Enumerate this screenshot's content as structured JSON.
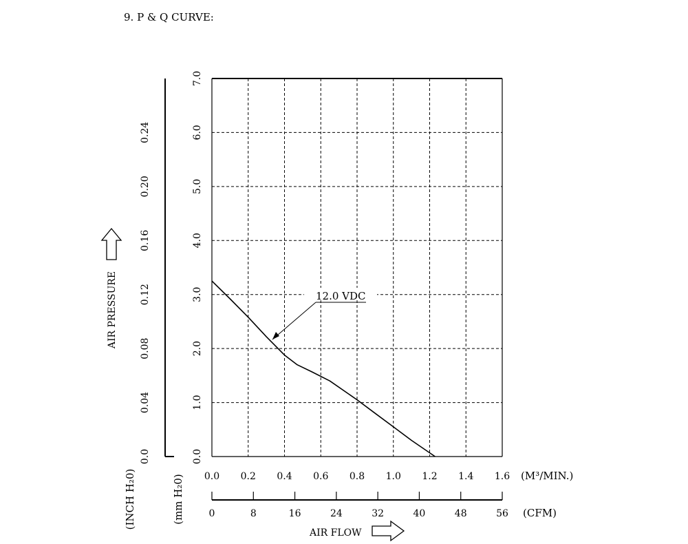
{
  "page": {
    "section_title": "9. P & Q CURVE:"
  },
  "chart_data": {
    "type": "line",
    "title": "",
    "xlabel": "AIR FLOW",
    "ylabel": "AIR PRESSURE",
    "x_axis_primary": {
      "unit": "(M³/MIN.)",
      "range": [
        0.0,
        1.6
      ],
      "ticks": [
        0.0,
        0.2,
        0.4,
        0.6,
        0.8,
        1.0,
        1.2,
        1.4,
        1.6
      ],
      "tick_labels": [
        "0.0",
        "0.2",
        "0.4",
        "0.6",
        "0.8",
        "1.0",
        "1.2",
        "1.4",
        "1.6"
      ]
    },
    "x_axis_secondary": {
      "unit": "(CFM)",
      "range": [
        0,
        56
      ],
      "ticks": [
        0,
        8,
        16,
        24,
        32,
        40,
        48,
        56
      ],
      "tick_labels": [
        "0",
        "8",
        "16",
        "24",
        "32",
        "40",
        "48",
        "56"
      ]
    },
    "y_axis_primary": {
      "unit": "(mm H₂0)",
      "range": [
        0.0,
        7.0
      ],
      "ticks": [
        0.0,
        1.0,
        2.0,
        3.0,
        4.0,
        5.0,
        6.0,
        7.0
      ],
      "tick_labels": [
        "0.0",
        "1.0",
        "2.0",
        "3.0",
        "4.0",
        "5.0",
        "6.0",
        "7.0"
      ]
    },
    "y_axis_secondary": {
      "unit": "(INCH H₂0)",
      "range": [
        0.0,
        0.28
      ],
      "ticks": [
        0.0,
        0.04,
        0.08,
        0.12,
        0.16,
        0.2,
        0.24
      ],
      "tick_labels": [
        "0.0",
        "0.04",
        "0.08",
        "0.12",
        "0.16",
        "0.20",
        "0.24"
      ]
    },
    "grid": true,
    "series": [
      {
        "name": "12.0 VDC",
        "x": [
          0.0,
          0.1,
          0.2,
          0.3,
          0.4,
          0.47,
          0.55,
          0.65,
          0.8,
          0.9,
          1.0,
          1.1,
          1.23
        ],
        "y": [
          3.25,
          2.92,
          2.58,
          2.22,
          1.88,
          1.7,
          1.57,
          1.4,
          1.05,
          0.8,
          0.55,
          0.3,
          0.0
        ]
      }
    ]
  }
}
